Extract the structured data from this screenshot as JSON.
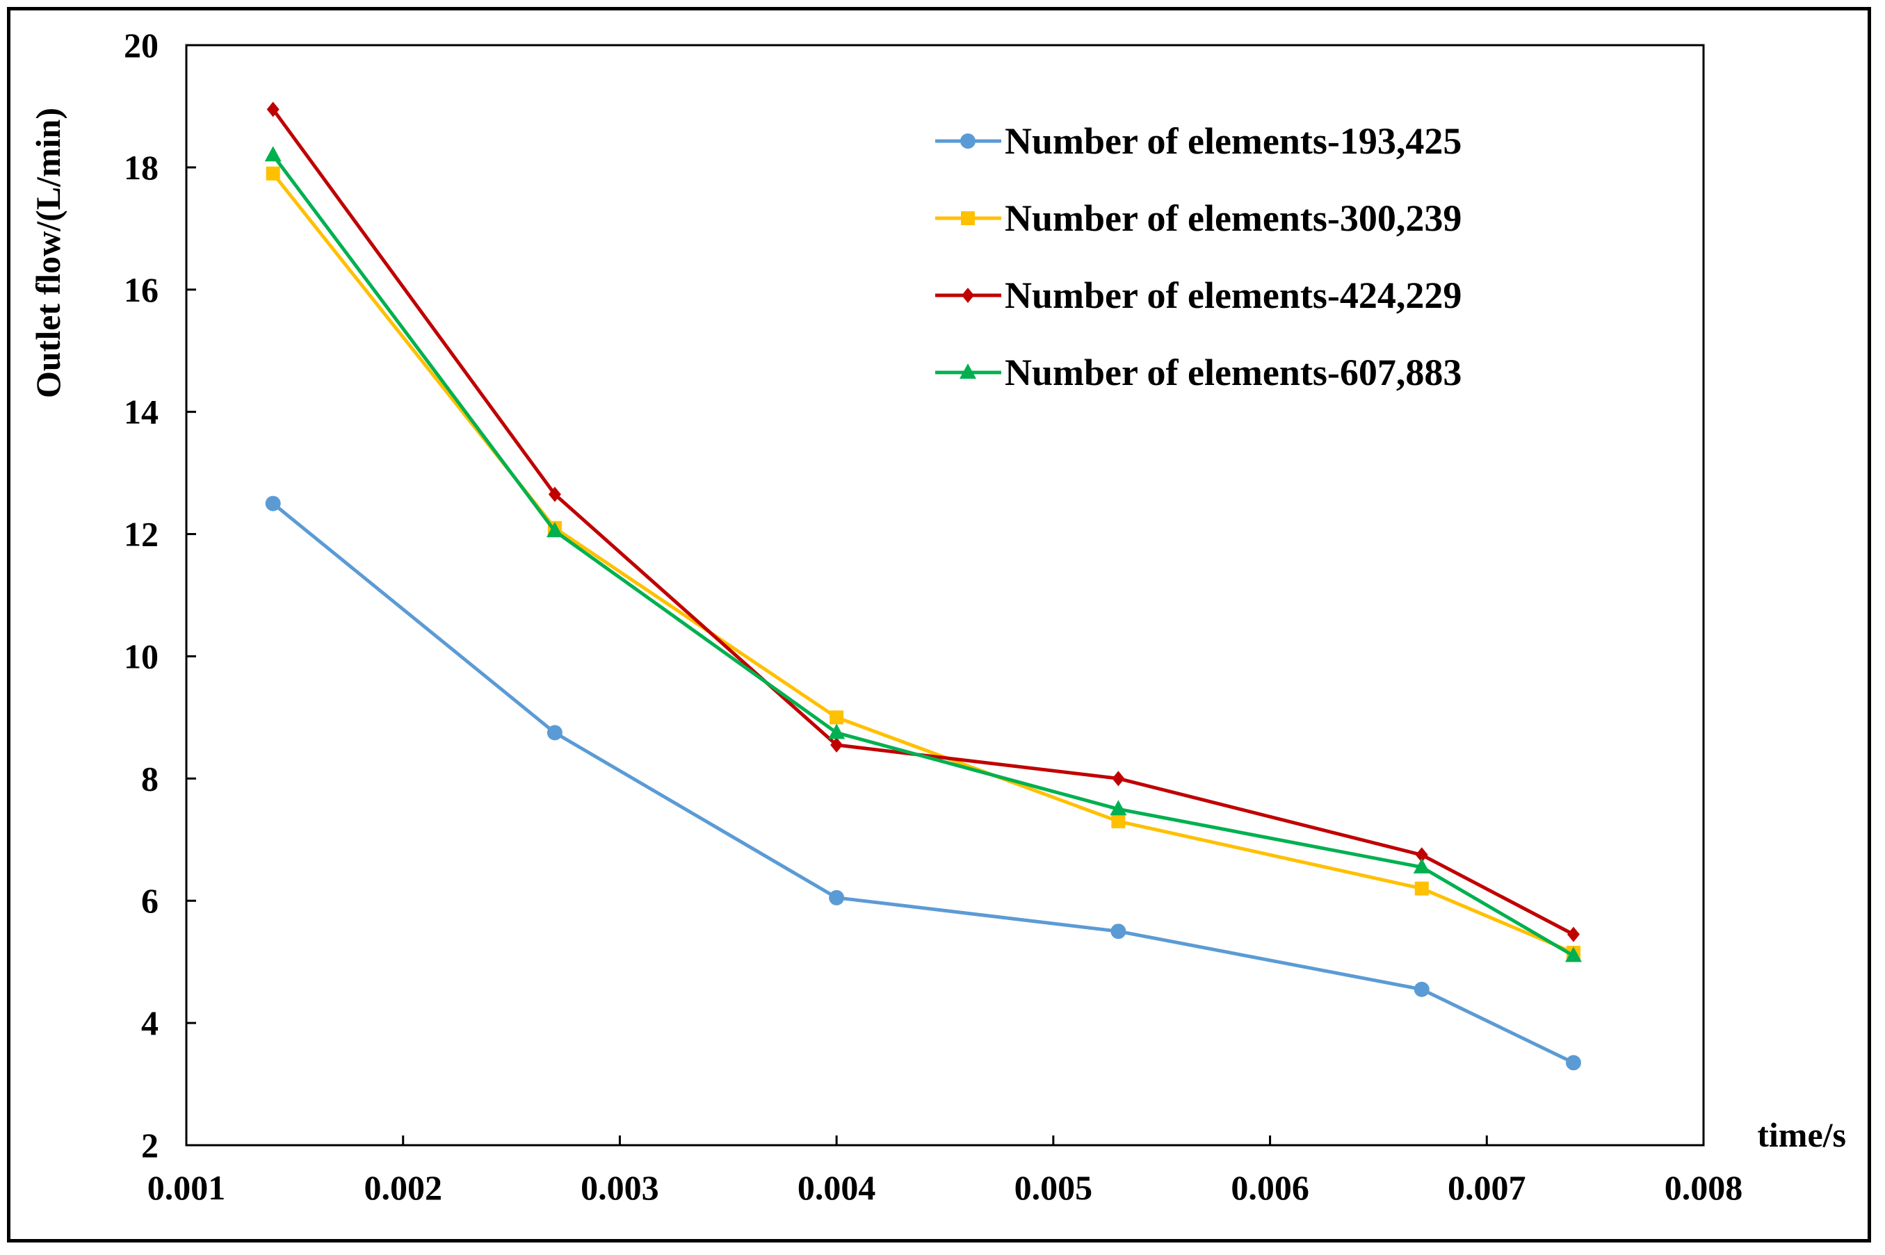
{
  "chart_data": {
    "type": "line",
    "title": "",
    "xlabel": "time/s",
    "ylabel": "Outlet flow/(L/min)",
    "xlim": [
      0.001,
      0.008
    ],
    "ylim": [
      2,
      20
    ],
    "xticks": [
      "0.001",
      "0.002",
      "0.003",
      "0.004",
      "0.005",
      "0.006",
      "0.007",
      "0.008"
    ],
    "yticks": [
      "2",
      "4",
      "6",
      "8",
      "10",
      "12",
      "14",
      "16",
      "18",
      "20"
    ],
    "grid": false,
    "legend_position": "top-right",
    "x": [
      0.0014,
      0.0027,
      0.004,
      0.0053,
      0.0067,
      0.0074
    ],
    "series": [
      {
        "name": "Number of elements-193,425",
        "color": "#5B9BD5",
        "marker": "circle",
        "values": [
          12.5,
          8.75,
          6.05,
          5.5,
          4.55,
          3.35
        ]
      },
      {
        "name": "Number of elements-300,239",
        "color": "#FFC000",
        "marker": "square",
        "values": [
          17.9,
          12.1,
          9.0,
          7.3,
          6.2,
          5.15
        ]
      },
      {
        "name": "Number of elements-424,229",
        "color": "#C00000",
        "marker": "diamond",
        "values": [
          18.95,
          12.65,
          8.55,
          8.0,
          6.75,
          5.45
        ]
      },
      {
        "name": "Number of elements-607,883",
        "color": "#00B050",
        "marker": "triangle",
        "values": [
          18.2,
          12.05,
          8.75,
          7.5,
          6.55,
          5.1
        ]
      }
    ]
  }
}
